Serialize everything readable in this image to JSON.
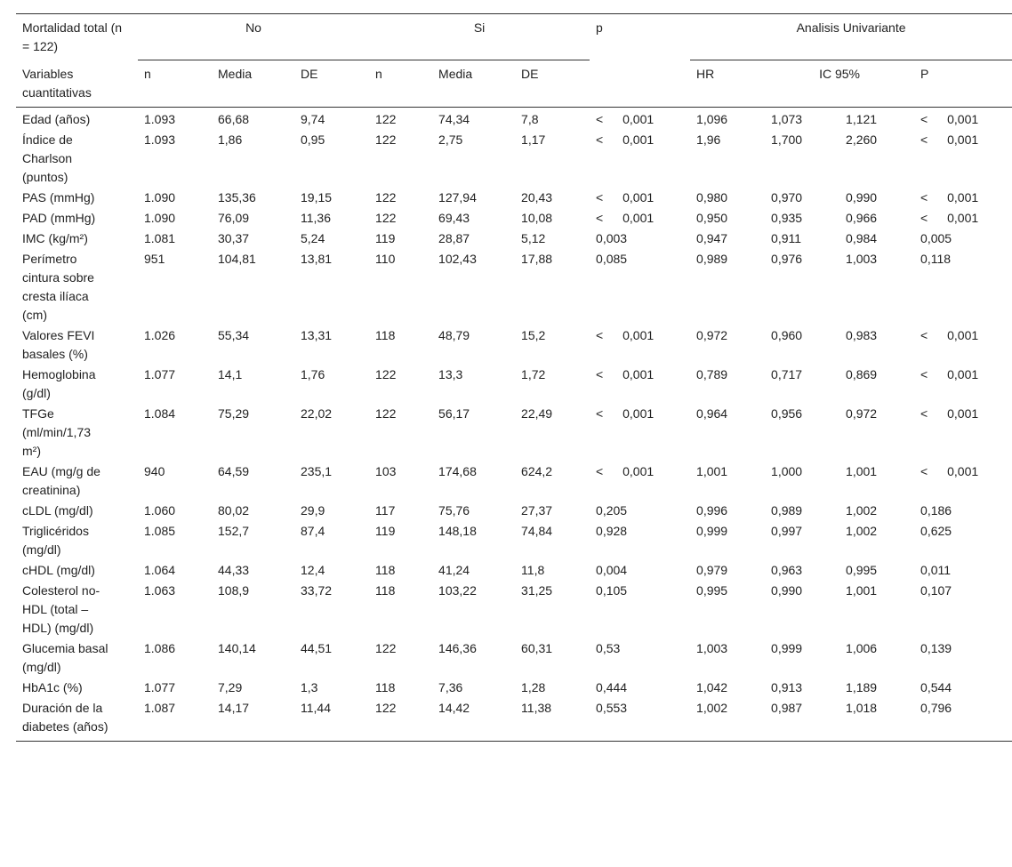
{
  "header": {
    "title": "Mortalidad total (n = 122)",
    "group_no": "No",
    "group_si": "Si",
    "p": "p",
    "univariate": "Analisis Univariante",
    "variables": "Variables cuantitativas",
    "columns": [
      "n",
      "Media",
      "DE",
      "n",
      "Media",
      "DE",
      "HR",
      "IC 95%",
      "P"
    ]
  },
  "table": {
    "rows": [
      [
        "Edad (años)",
        "1.093",
        "66,68",
        "9,74",
        "122",
        "74,34",
        "7,8",
        "< 0,001",
        "1,096",
        "1,073",
        "1,121",
        "< 0,001"
      ],
      [
        "Índice de Charlson (puntos)",
        "1.093",
        "1,86",
        "0,95",
        "122",
        "2,75",
        "1,17",
        "< 0,001",
        "1,96",
        "1,700",
        "2,260",
        "< 0,001"
      ],
      [
        "PAS (mmHg)",
        "1.090",
        "135,36",
        "19,15",
        "122",
        "127,94",
        "20,43",
        "< 0,001",
        "0,980",
        "0,970",
        "0,990",
        "< 0,001"
      ],
      [
        "PAD (mmHg)",
        "1.090",
        "76,09",
        "11,36",
        "122",
        "69,43",
        "10,08",
        "< 0,001",
        "0,950",
        "0,935",
        "0,966",
        "< 0,001"
      ],
      [
        "IMC (kg/m²)",
        "1.081",
        "30,37",
        "5,24",
        "119",
        "28,87",
        "5,12",
        "0,003",
        "0,947",
        "0,911",
        "0,984",
        "0,005"
      ],
      [
        "Perímetro cintura sobre cresta ilíaca (cm)",
        "951",
        "104,81",
        "13,81",
        "110",
        "102,43",
        "17,88",
        "0,085",
        "0,989",
        "0,976",
        "1,003",
        "0,118"
      ],
      [
        "Valores FEVI basales (%)",
        "1.026",
        "55,34",
        "13,31",
        "118",
        "48,79",
        "15,2",
        "< 0,001",
        "0,972",
        "0,960",
        "0,983",
        "< 0,001"
      ],
      [
        "Hemoglobina (g/dl)",
        "1.077",
        "14,1",
        "1,76",
        "122",
        "13,3",
        "1,72",
        "< 0,001",
        "0,789",
        "0,717",
        "0,869",
        "< 0,001"
      ],
      [
        "TFGe (ml/min/1,73 m²)",
        "1.084",
        "75,29",
        "22,02",
        "122",
        "56,17",
        "22,49",
        "< 0,001",
        "0,964",
        "0,956",
        "0,972",
        "< 0,001"
      ],
      [
        "EAU (mg/g de creatinina)",
        "940",
        "64,59",
        "235,1",
        "103",
        "174,68",
        "624,2",
        "< 0,001",
        "1,001",
        "1,000",
        "1,001",
        "< 0,001"
      ],
      [
        "cLDL (mg/dl)",
        "1.060",
        "80,02",
        "29,9",
        "117",
        "75,76",
        "27,37",
        "0,205",
        "0,996",
        "0,989",
        "1,002",
        "0,186"
      ],
      [
        "Triglicéridos (mg/dl)",
        "1.085",
        "152,7",
        "87,4",
        "119",
        "148,18",
        "74,84",
        "0,928",
        "0,999",
        "0,997",
        "1,002",
        "0,625"
      ],
      [
        "cHDL (mg/dl)",
        "1.064",
        "44,33",
        "12,4",
        "118",
        "41,24",
        "11,8",
        "0,004",
        "0,979",
        "0,963",
        "0,995",
        "0,011"
      ],
      [
        "Colesterol no-HDL (total – HDL) (mg/dl)",
        "1.063",
        "108,9",
        "33,72",
        "118",
        "103,22",
        "31,25",
        "0,105",
        "0,995",
        "0,990",
        "1,001",
        "0,107"
      ],
      [
        "Glucemia basal (mg/dl)",
        "1.086",
        "140,14",
        "44,51",
        "122",
        "146,36",
        "60,31",
        "0,53",
        "1,003",
        "0,999",
        "1,006",
        "0,139"
      ],
      [
        "HbA1c (%)",
        "1.077",
        "7,29",
        "1,3",
        "118",
        "7,36",
        "1,28",
        "0,444",
        "1,042",
        "0,913",
        "1,189",
        "0,544"
      ],
      [
        "Duración de la diabetes (años)",
        "1.087",
        "14,17",
        "11,44",
        "122",
        "14,42",
        "11,38",
        "0,553",
        "1,002",
        "0,987",
        "1,018",
        "0,796"
      ]
    ]
  }
}
